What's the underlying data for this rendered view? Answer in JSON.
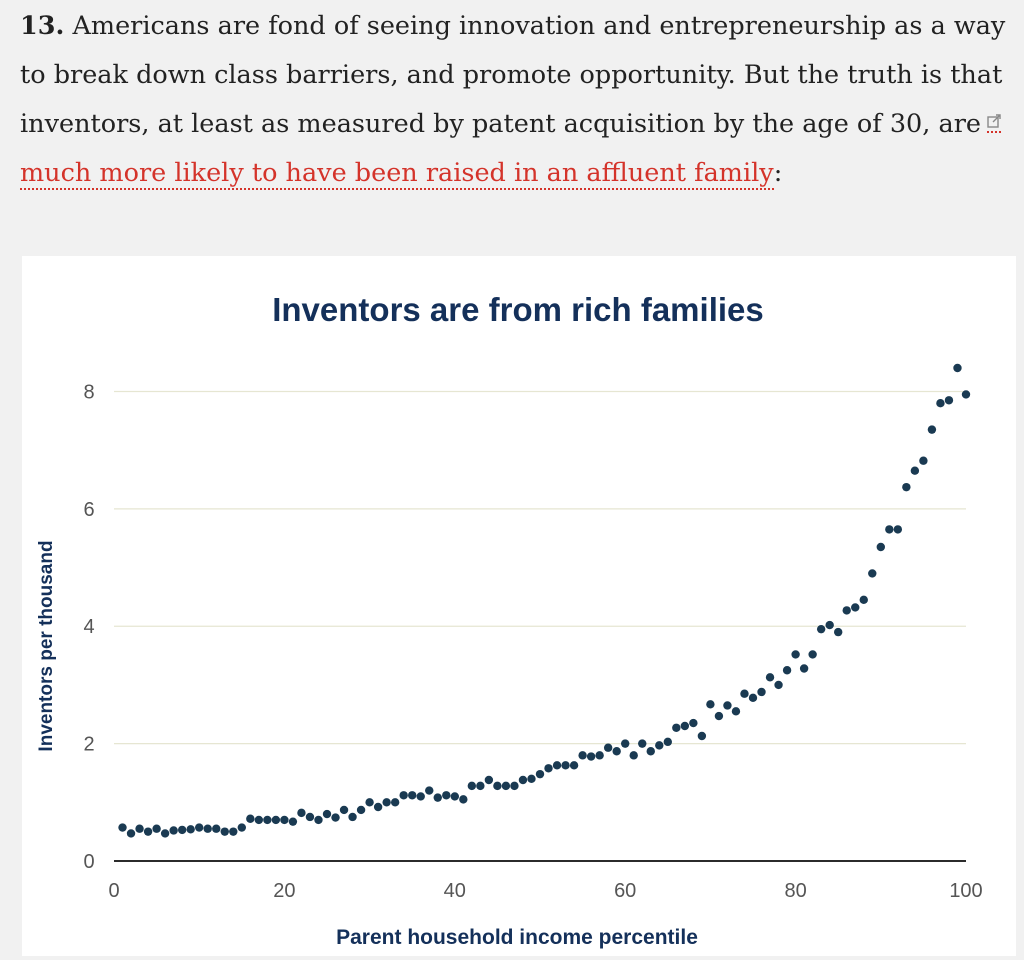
{
  "article": {
    "item_number": "13.",
    "text_before_link": "Americans are fond of seeing innovation and entrepreneurship as a way to break down class barriers, and promote opportunity. But the truth is that inventors, at least as measured by patent acquisition by the age of 30, are",
    "link_text": "much more likely to have been raised in an affluent family",
    "text_after_link": ":",
    "link_icon": "external-link-icon"
  },
  "colors": {
    "text": "#222222",
    "link": "#d4332a",
    "chart_title": "#14305a",
    "points": "#1a3a52",
    "grid": "#e6e6d2",
    "axis": "#2b2b2b"
  },
  "chart_data": {
    "type": "scatter",
    "title": "Inventors are from rich families",
    "xlabel": "Parent household income percentile",
    "ylabel": "Inventors per thousand",
    "xlim": [
      0,
      100
    ],
    "ylim": [
      0,
      8.4
    ],
    "xticks": [
      0,
      20,
      40,
      60,
      80,
      100
    ],
    "yticks": [
      0,
      2,
      4,
      6,
      8
    ],
    "grid": "horizontal",
    "x": [
      1,
      2,
      3,
      4,
      5,
      6,
      7,
      8,
      9,
      10,
      11,
      12,
      13,
      14,
      15,
      16,
      17,
      18,
      19,
      20,
      21,
      22,
      23,
      24,
      25,
      26,
      27,
      28,
      29,
      30,
      31,
      32,
      33,
      34,
      35,
      36,
      37,
      38,
      39,
      40,
      41,
      42,
      43,
      44,
      45,
      46,
      47,
      48,
      49,
      50,
      51,
      52,
      53,
      54,
      55,
      56,
      57,
      58,
      59,
      60,
      61,
      62,
      63,
      64,
      65,
      66,
      67,
      68,
      69,
      70,
      71,
      72,
      73,
      74,
      75,
      76,
      77,
      78,
      79,
      80,
      81,
      82,
      83,
      84,
      85,
      86,
      87,
      88,
      89,
      90,
      91,
      92,
      93,
      94,
      95,
      96,
      97,
      98,
      99,
      100
    ],
    "y": [
      0.57,
      0.47,
      0.55,
      0.5,
      0.55,
      0.47,
      0.52,
      0.53,
      0.54,
      0.57,
      0.55,
      0.55,
      0.5,
      0.5,
      0.57,
      0.72,
      0.7,
      0.7,
      0.7,
      0.7,
      0.67,
      0.82,
      0.75,
      0.7,
      0.8,
      0.74,
      0.87,
      0.75,
      0.87,
      1.0,
      0.92,
      1.0,
      1.0,
      1.12,
      1.12,
      1.1,
      1.2,
      1.08,
      1.12,
      1.1,
      1.05,
      1.28,
      1.28,
      1.38,
      1.28,
      1.28,
      1.28,
      1.38,
      1.4,
      1.48,
      1.58,
      1.63,
      1.63,
      1.63,
      1.8,
      1.78,
      1.8,
      1.93,
      1.87,
      2.0,
      1.8,
      2.0,
      1.87,
      1.97,
      2.03,
      2.27,
      2.3,
      2.35,
      2.13,
      2.67,
      2.47,
      2.65,
      2.55,
      2.85,
      2.78,
      2.88,
      3.13,
      3.0,
      3.25,
      3.52,
      3.28,
      3.52,
      3.95,
      4.02,
      3.9,
      4.27,
      4.32,
      4.45,
      4.9,
      5.35,
      5.65,
      5.65,
      6.37,
      6.65,
      6.82,
      7.35,
      7.8,
      7.85,
      8.4,
      7.95
    ]
  }
}
